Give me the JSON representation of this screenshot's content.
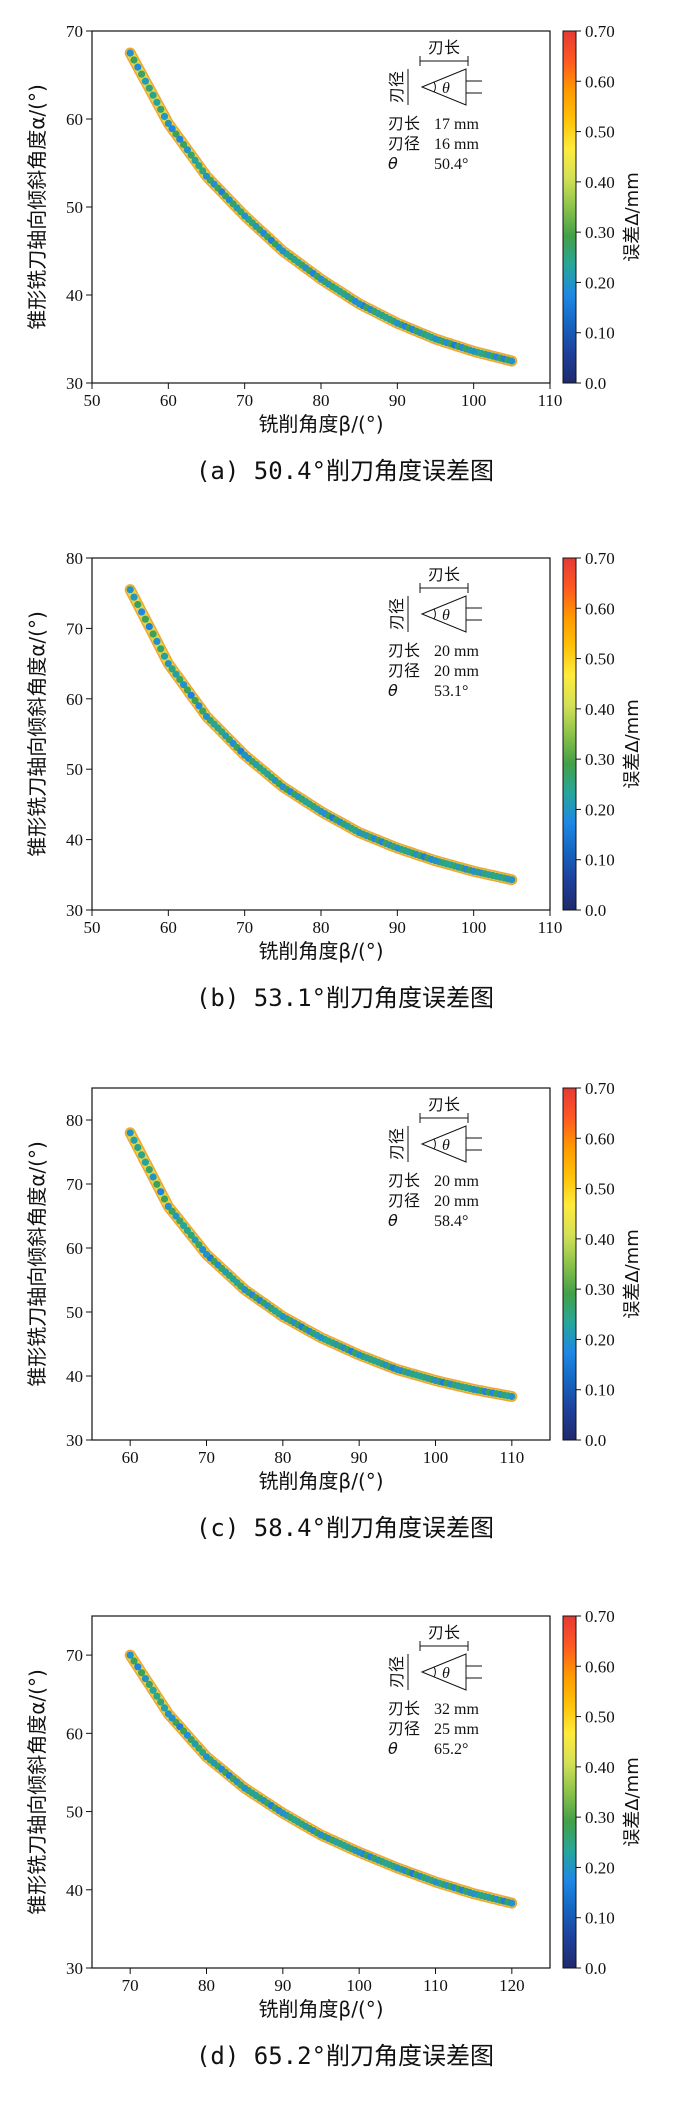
{
  "colormap": [
    "#1f2a6b",
    "#1e3f9a",
    "#1565c0",
    "#1e88e5",
    "#26a69a",
    "#43a047",
    "#8bc34a",
    "#d4e157",
    "#ffeb3b",
    "#ffc107",
    "#ff9800",
    "#ff5722",
    "#e53935"
  ],
  "panels": [
    {
      "caption": "(a) 50.4°削刀角度误差图",
      "legend": {
        "header": "刃长",
        "side": "刃径",
        "symbol": "θ",
        "rows": [
          {
            "label": "刃长",
            "value": "17 mm"
          },
          {
            "label": "刃径",
            "value": "16 mm"
          },
          {
            "label": "θ",
            "value": "50.4°"
          }
        ]
      },
      "colorbar": {
        "label": "误差Δ/mm",
        "ticks": [
          "0.0",
          "0.10",
          "0.20",
          "0.30",
          "0.40",
          "0.50",
          "0.60",
          "0.70"
        ],
        "range": [
          0,
          0.7
        ]
      },
      "chart_data": {
        "type": "scatter",
        "xlabel": "铣削角度β/(°)",
        "ylabel": "锥形铣刀轴向倾斜角度α/(°)",
        "xlim": [
          50,
          110
        ],
        "ylim": [
          30,
          70
        ],
        "xticks": [
          "50",
          "60",
          "70",
          "80",
          "90",
          "100",
          "110"
        ],
        "yticks": [
          "30",
          "40",
          "50",
          "60",
          "70"
        ],
        "x": [
          55,
          60,
          65,
          70,
          75,
          80,
          85,
          90,
          95,
          100,
          105
        ],
        "y": [
          67.5,
          59.5,
          53.5,
          49.0,
          45.0,
          41.8,
          39.0,
          36.8,
          35.0,
          33.6,
          32.5
        ]
      }
    },
    {
      "caption": "(b) 53.1°削刀角度误差图",
      "legend": {
        "header": "刃长",
        "side": "刃径",
        "symbol": "θ",
        "rows": [
          {
            "label": "刃长",
            "value": "20 mm"
          },
          {
            "label": "刃径",
            "value": "20 mm"
          },
          {
            "label": "θ",
            "value": "53.1°"
          }
        ]
      },
      "colorbar": {
        "label": "误差Δ/mm",
        "ticks": [
          "0.0",
          "0.10",
          "0.20",
          "0.30",
          "0.40",
          "0.50",
          "0.60",
          "0.70"
        ],
        "range": [
          0,
          0.7
        ]
      },
      "chart_data": {
        "type": "scatter",
        "xlabel": "铣削角度β/(°)",
        "ylabel": "锥形铣刀轴向倾斜角度α/(°)",
        "xlim": [
          50,
          110
        ],
        "ylim": [
          30,
          80
        ],
        "xticks": [
          "50",
          "60",
          "70",
          "80",
          "90",
          "100",
          "110"
        ],
        "yticks": [
          "30",
          "40",
          "50",
          "60",
          "70",
          "80"
        ],
        "x": [
          55,
          60,
          65,
          70,
          75,
          80,
          85,
          90,
          95,
          100,
          105
        ],
        "y": [
          75.5,
          65.0,
          57.5,
          52.0,
          47.5,
          44.0,
          41.0,
          38.8,
          37.0,
          35.5,
          34.3
        ]
      }
    },
    {
      "caption": "(c) 58.4°削刀角度误差图",
      "legend": {
        "header": "刃长",
        "side": "刃径",
        "symbol": "θ",
        "rows": [
          {
            "label": "刃长",
            "value": "20 mm"
          },
          {
            "label": "刃径",
            "value": "20 mm"
          },
          {
            "label": "θ",
            "value": "58.4°"
          }
        ]
      },
      "colorbar": {
        "label": "误差Δ/mm",
        "ticks": [
          "0.0",
          "0.10",
          "0.20",
          "0.30",
          "0.40",
          "0.50",
          "0.60",
          "0.70"
        ],
        "range": [
          0,
          0.7
        ]
      },
      "chart_data": {
        "type": "scatter",
        "xlabel": "铣削角度β/(°)",
        "ylabel": "锥形铣刀轴向倾斜角度α/(°)",
        "xlim": [
          55,
          115
        ],
        "ylim": [
          30,
          85
        ],
        "xticks": [
          "60",
          "70",
          "80",
          "90",
          "100",
          "110"
        ],
        "yticks": [
          "30",
          "40",
          "50",
          "60",
          "70",
          "80"
        ],
        "x": [
          60,
          65,
          70,
          75,
          80,
          85,
          90,
          95,
          100,
          105,
          110
        ],
        "y": [
          78.0,
          66.5,
          59.0,
          53.5,
          49.3,
          46.0,
          43.3,
          41.0,
          39.3,
          37.9,
          36.8
        ]
      }
    },
    {
      "caption": "(d) 65.2°削刀角度误差图",
      "legend": {
        "header": "刃长",
        "side": "刃径",
        "symbol": "θ",
        "rows": [
          {
            "label": "刃长",
            "value": "32 mm"
          },
          {
            "label": "刃径",
            "value": "25 mm"
          },
          {
            "label": "θ",
            "value": "65.2°"
          }
        ]
      },
      "colorbar": {
        "label": "误差Δ/mm",
        "ticks": [
          "0.0",
          "0.10",
          "0.20",
          "0.30",
          "0.40",
          "0.50",
          "0.60",
          "0.70"
        ],
        "range": [
          0,
          0.7
        ]
      },
      "chart_data": {
        "type": "scatter",
        "xlabel": "铣削角度β/(°)",
        "ylabel": "锥形铣刀轴向倾斜角度α/(°)",
        "xlim": [
          65,
          125
        ],
        "ylim": [
          30,
          75
        ],
        "xticks": [
          "70",
          "80",
          "90",
          "100",
          "110",
          "120"
        ],
        "yticks": [
          "30",
          "40",
          "50",
          "60",
          "70"
        ],
        "x": [
          70,
          75,
          80,
          85,
          90,
          95,
          100,
          105,
          110,
          115,
          120
        ],
        "y": [
          70.0,
          62.5,
          57.0,
          53.0,
          49.8,
          47.0,
          44.8,
          42.8,
          41.0,
          39.5,
          38.3
        ]
      }
    }
  ]
}
